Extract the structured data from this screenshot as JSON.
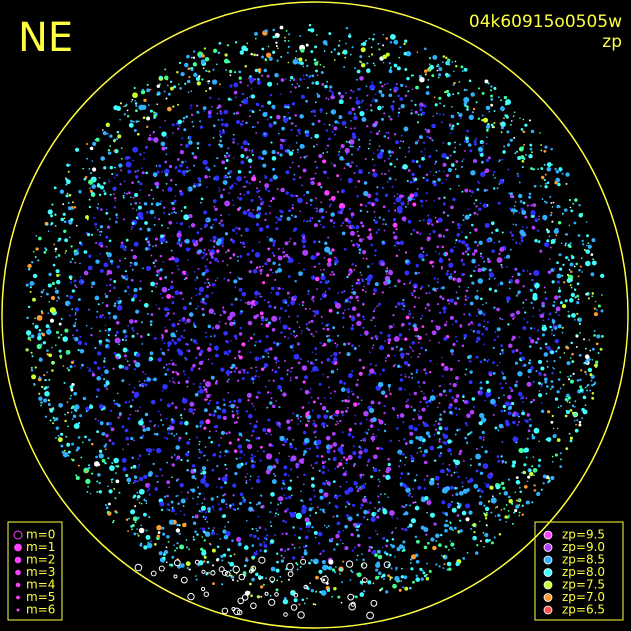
{
  "header": {
    "direction": "NE",
    "image_id": "04k60915o0505w",
    "mode": "zp"
  },
  "magnitude_legend": {
    "items": [
      {
        "label": "m=0",
        "radius": 4
      },
      {
        "label": "m=1",
        "radius": 3.4
      },
      {
        "label": "m=2",
        "radius": 2.8
      },
      {
        "label": "m=3",
        "radius": 2.3
      },
      {
        "label": "m=4",
        "radius": 1.8
      },
      {
        "label": "m=5",
        "radius": 1.4
      },
      {
        "label": "m=6",
        "radius": 1
      }
    ],
    "color": "#ff40ff"
  },
  "zp_legend": {
    "items": [
      {
        "label": "zp=9.5",
        "color": "#ff40ff"
      },
      {
        "label": "zp=9.0",
        "color": "#b040ff"
      },
      {
        "label": "zp=8.5",
        "color": "#30b0ff"
      },
      {
        "label": "zp=8.0",
        "color": "#40ffff"
      },
      {
        "label": "zp=7.5",
        "color": "#c8ff30"
      },
      {
        "label": "zp=7.0",
        "color": "#ff9a30"
      },
      {
        "label": "zp=6.5",
        "color": "#ff5050"
      }
    ]
  }
}
